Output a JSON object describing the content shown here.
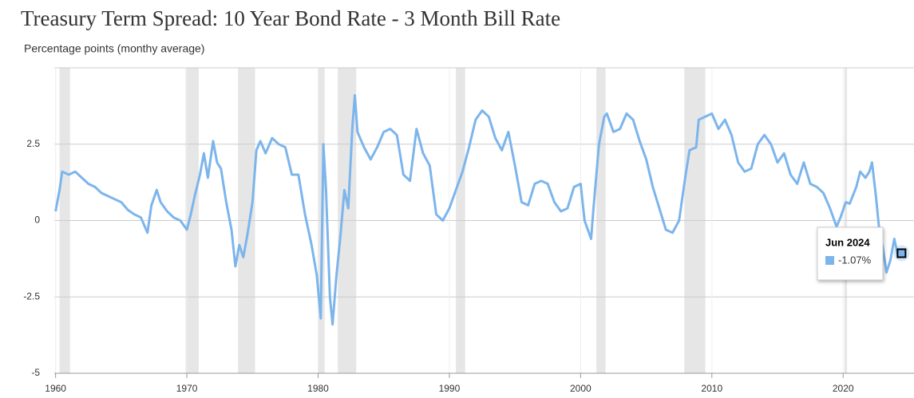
{
  "chart_data": {
    "type": "line",
    "title": "Treasury Term Spread: 10 Year Bond Rate - 3 Month Bill Rate",
    "subtitle": "Percentage points (monthy average)",
    "x": [
      1960.0,
      1960.3,
      1960.5,
      1961,
      1961.5,
      1962,
      1962.5,
      1963,
      1963.5,
      1964,
      1964.5,
      1965,
      1965.5,
      1966,
      1966.5,
      1967,
      1967.3,
      1967.7,
      1968,
      1968.5,
      1969,
      1969.5,
      1970,
      1970.3,
      1970.6,
      1971,
      1971.3,
      1971.6,
      1972,
      1972.3,
      1972.6,
      1973,
      1973.4,
      1973.7,
      1974,
      1974.3,
      1974.6,
      1975,
      1975.3,
      1975.6,
      1976,
      1976.5,
      1977,
      1977.5,
      1978,
      1978.5,
      1979,
      1979.5,
      1979.9,
      1980.2,
      1980.4,
      1980.6,
      1980.9,
      1981.1,
      1981.4,
      1981.7,
      1982,
      1982.3,
      1982.6,
      1982.8,
      1983,
      1983.5,
      1984,
      1984.5,
      1985,
      1985.5,
      1986,
      1986.5,
      1987,
      1987.5,
      1988,
      1988.5,
      1989,
      1989.5,
      1990,
      1990.5,
      1991,
      1991.5,
      1992,
      1992.5,
      1993,
      1993.5,
      1994,
      1994.5,
      1995,
      1995.5,
      1996,
      1996.5,
      1997,
      1997.5,
      1998,
      1998.5,
      1999,
      1999.5,
      2000,
      2000.3,
      2000.8,
      2001,
      2001.4,
      2001.8,
      2002,
      2002.5,
      2003,
      2003.5,
      2004,
      2004.5,
      2005,
      2005.5,
      2006,
      2006.5,
      2007,
      2007.5,
      2008,
      2008.3,
      2008.8,
      2009,
      2009.5,
      2010,
      2010.5,
      2011,
      2011.5,
      2012,
      2012.5,
      2013,
      2013.5,
      2014,
      2014.5,
      2015,
      2015.5,
      2016,
      2016.5,
      2017,
      2017.5,
      2018,
      2018.5,
      2019,
      2019.5,
      2019.8,
      2020.2,
      2020.5,
      2021,
      2021.3,
      2021.7,
      2022,
      2022.2,
      2022.5,
      2022.8,
      2023,
      2023.3,
      2023.6,
      2023.9,
      2024.2,
      2024.45
    ],
    "series": [
      {
        "color": "#7cb5ec",
        "values": [
          0.3,
          1.0,
          1.6,
          1.5,
          1.6,
          1.4,
          1.2,
          1.1,
          0.9,
          0.8,
          0.7,
          0.6,
          0.35,
          0.2,
          0.1,
          -0.4,
          0.5,
          1.0,
          0.6,
          0.3,
          0.1,
          0.0,
          -0.3,
          0.2,
          0.8,
          1.5,
          2.2,
          1.4,
          2.6,
          1.9,
          1.7,
          0.6,
          -0.3,
          -1.5,
          -0.8,
          -1.2,
          -0.5,
          0.6,
          2.3,
          2.6,
          2.2,
          2.7,
          2.5,
          2.4,
          1.5,
          1.5,
          0.2,
          -0.8,
          -1.8,
          -3.2,
          2.5,
          1.0,
          -2.5,
          -3.4,
          -1.8,
          -0.5,
          1.0,
          0.4,
          3.0,
          4.1,
          2.9,
          2.4,
          2.0,
          2.4,
          2.9,
          3.0,
          2.8,
          1.5,
          1.3,
          3.0,
          2.2,
          1.8,
          0.2,
          0.0,
          0.4,
          1.0,
          1.6,
          2.4,
          3.3,
          3.6,
          3.4,
          2.7,
          2.3,
          2.9,
          1.8,
          0.6,
          0.5,
          1.2,
          1.3,
          1.2,
          0.6,
          0.3,
          0.4,
          1.1,
          1.2,
          0.0,
          -0.6,
          0.5,
          2.5,
          3.4,
          3.5,
          2.9,
          3.0,
          3.5,
          3.3,
          2.6,
          2.0,
          1.1,
          0.4,
          -0.3,
          -0.4,
          0.0,
          1.5,
          2.3,
          2.4,
          3.3,
          3.4,
          3.5,
          3.0,
          3.3,
          2.8,
          1.9,
          1.6,
          1.7,
          2.5,
          2.8,
          2.5,
          1.9,
          2.2,
          1.5,
          1.2,
          1.9,
          1.2,
          1.1,
          0.9,
          0.4,
          -0.2,
          0.1,
          0.6,
          0.55,
          1.1,
          1.6,
          1.4,
          1.6,
          1.9,
          0.8,
          -0.5,
          -0.8,
          -1.7,
          -1.3,
          -0.6,
          -1.2,
          -1.07
        ]
      }
    ],
    "recessions": [
      [
        1960.3,
        1961.1
      ],
      [
        1969.9,
        1970.9
      ],
      [
        1973.9,
        1975.2
      ],
      [
        1980.0,
        1980.5
      ],
      [
        1981.5,
        1982.9
      ],
      [
        1990.5,
        1991.2
      ],
      [
        2001.2,
        2001.9
      ],
      [
        2007.9,
        2009.5
      ],
      [
        2020.1,
        2020.3
      ]
    ],
    "xlim": [
      1959.9,
      2025.4
    ],
    "xticks": [
      1960,
      1970,
      1980,
      1990,
      2000,
      2010,
      2020
    ],
    "ylim": [
      -5,
      5
    ],
    "yticks": [
      -5,
      -2.5,
      0,
      2.5
    ],
    "grid": true,
    "highlight": {
      "label": "Jun 2024",
      "x": 2024.45,
      "value": -1.07,
      "value_label": "-1.07%"
    }
  }
}
